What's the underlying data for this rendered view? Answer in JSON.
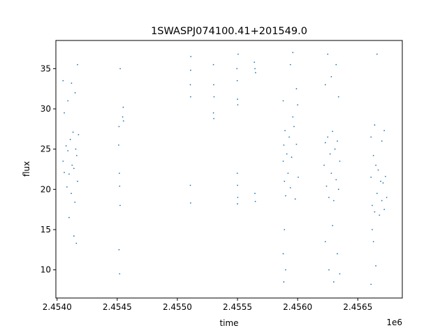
{
  "chart_data": {
    "type": "scatter",
    "title": "1SWASPJ074100.41+201549.0",
    "xlabel": "time",
    "ylabel": "flux",
    "x_offset_label": "1e6",
    "xlim": [
      2453990,
      2456870
    ],
    "ylim": [
      6.5,
      38.5
    ],
    "x_ticks": [
      2454000,
      2454500,
      2455000,
      2455500,
      2456000,
      2456500
    ],
    "x_tick_labels": [
      "2.4540",
      "2.4545",
      "2.4550",
      "2.4555",
      "2.4560",
      "2.4565"
    ],
    "y_ticks": [
      10,
      15,
      20,
      25,
      30,
      35
    ],
    "y_tick_labels": [
      "10",
      "15",
      "20",
      "25",
      "30",
      "35"
    ],
    "grid": false,
    "marker_color": "#1f77b4",
    "series": [
      {
        "points": [
          [
            2454050,
            23.5
          ],
          [
            2454060,
            22.1
          ],
          [
            2454075,
            25.4
          ],
          [
            2454082,
            20.3
          ],
          [
            2454090,
            24.8
          ],
          [
            2454100,
            21.9
          ],
          [
            2454110,
            26.2
          ],
          [
            2454118,
            19.5
          ],
          [
            2454125,
            23.0
          ],
          [
            2454133,
            27.1
          ],
          [
            2454140,
            22.6
          ],
          [
            2454148,
            18.4
          ],
          [
            2454155,
            25.0
          ],
          [
            2454163,
            24.2
          ],
          [
            2454170,
            21.0
          ],
          [
            2454178,
            26.8
          ],
          [
            2454060,
            29.5
          ],
          [
            2454090,
            31.0
          ],
          [
            2454120,
            33.2
          ],
          [
            2454150,
            32.0
          ],
          [
            2454100,
            16.5
          ],
          [
            2454140,
            14.2
          ],
          [
            2454160,
            13.3
          ],
          [
            2454050,
            33.5
          ],
          [
            2454170,
            35.5
          ],
          [
            2454512,
            25.5
          ],
          [
            2454515,
            27.8
          ],
          [
            2454518,
            22.0
          ],
          [
            2454520,
            20.4
          ],
          [
            2454524,
            18.0
          ],
          [
            2454515,
            12.5
          ],
          [
            2454520,
            9.5
          ],
          [
            2454525,
            35.0
          ],
          [
            2454545,
            29.0
          ],
          [
            2454550,
            30.2
          ],
          [
            2454552,
            28.5
          ],
          [
            2455108,
            33.0
          ],
          [
            2455110,
            34.8
          ],
          [
            2455112,
            36.5
          ],
          [
            2455110,
            31.5
          ],
          [
            2455108,
            20.5
          ],
          [
            2455110,
            18.3
          ],
          [
            2455300,
            35.5
          ],
          [
            2455302,
            33.0
          ],
          [
            2455305,
            31.5
          ],
          [
            2455300,
            29.5
          ],
          [
            2455303,
            28.8
          ],
          [
            2455495,
            35.0
          ],
          [
            2455498,
            33.5
          ],
          [
            2455500,
            31.2
          ],
          [
            2455502,
            30.5
          ],
          [
            2455505,
            36.8
          ],
          [
            2455498,
            22.0
          ],
          [
            2455500,
            20.5
          ],
          [
            2455502,
            19.0
          ],
          [
            2455500,
            18.2
          ],
          [
            2455640,
            35.8
          ],
          [
            2455645,
            35.0
          ],
          [
            2455650,
            34.5
          ],
          [
            2455645,
            19.5
          ],
          [
            2455648,
            18.5
          ],
          [
            2455880,
            23.5
          ],
          [
            2455885,
            25.5
          ],
          [
            2455890,
            21.0
          ],
          [
            2455895,
            27.3
          ],
          [
            2455900,
            19.2
          ],
          [
            2455910,
            24.4
          ],
          [
            2455920,
            22.0
          ],
          [
            2455930,
            26.5
          ],
          [
            2455940,
            20.2
          ],
          [
            2455950,
            24.0
          ],
          [
            2455960,
            29.0
          ],
          [
            2455970,
            27.8
          ],
          [
            2455980,
            18.8
          ],
          [
            2455990,
            25.6
          ],
          [
            2456000,
            30.5
          ],
          [
            2456005,
            21.5
          ],
          [
            2455880,
            31.0
          ],
          [
            2455890,
            15.0
          ],
          [
            2455880,
            12.0
          ],
          [
            2455885,
            8.5
          ],
          [
            2455900,
            10.0
          ],
          [
            2455940,
            35.5
          ],
          [
            2455960,
            37.0
          ],
          [
            2455990,
            32.5
          ],
          [
            2456220,
            23.0
          ],
          [
            2456230,
            25.8
          ],
          [
            2456240,
            20.4
          ],
          [
            2456250,
            26.5
          ],
          [
            2456260,
            19.0
          ],
          [
            2456270,
            24.4
          ],
          [
            2456280,
            22.0
          ],
          [
            2456290,
            27.2
          ],
          [
            2456300,
            18.6
          ],
          [
            2456310,
            25.0
          ],
          [
            2456320,
            21.2
          ],
          [
            2456330,
            26.0
          ],
          [
            2456340,
            20.0
          ],
          [
            2456350,
            23.5
          ],
          [
            2456230,
            33.0
          ],
          [
            2456250,
            36.8
          ],
          [
            2456280,
            34.0
          ],
          [
            2456320,
            35.5
          ],
          [
            2456340,
            31.5
          ],
          [
            2456230,
            13.5
          ],
          [
            2456260,
            10.0
          ],
          [
            2456300,
            8.5
          ],
          [
            2456330,
            12.0
          ],
          [
            2456350,
            9.5
          ],
          [
            2456290,
            15.5
          ],
          [
            2456610,
            21.5
          ],
          [
            2456620,
            18.0
          ],
          [
            2456630,
            24.2
          ],
          [
            2456640,
            17.2
          ],
          [
            2456650,
            23.0
          ],
          [
            2456660,
            19.5
          ],
          [
            2456670,
            22.4
          ],
          [
            2456680,
            16.8
          ],
          [
            2456690,
            21.0
          ],
          [
            2456700,
            18.6
          ],
          [
            2456710,
            20.8
          ],
          [
            2456720,
            17.5
          ],
          [
            2456730,
            21.6
          ],
          [
            2456740,
            19.0
          ],
          [
            2456610,
            26.5
          ],
          [
            2456640,
            28.0
          ],
          [
            2456660,
            36.8
          ],
          [
            2456700,
            26.0
          ],
          [
            2456720,
            27.3
          ],
          [
            2456610,
            8.2
          ],
          [
            2456630,
            13.5
          ],
          [
            2456650,
            10.5
          ],
          [
            2456620,
            15.0
          ]
        ]
      }
    ]
  }
}
